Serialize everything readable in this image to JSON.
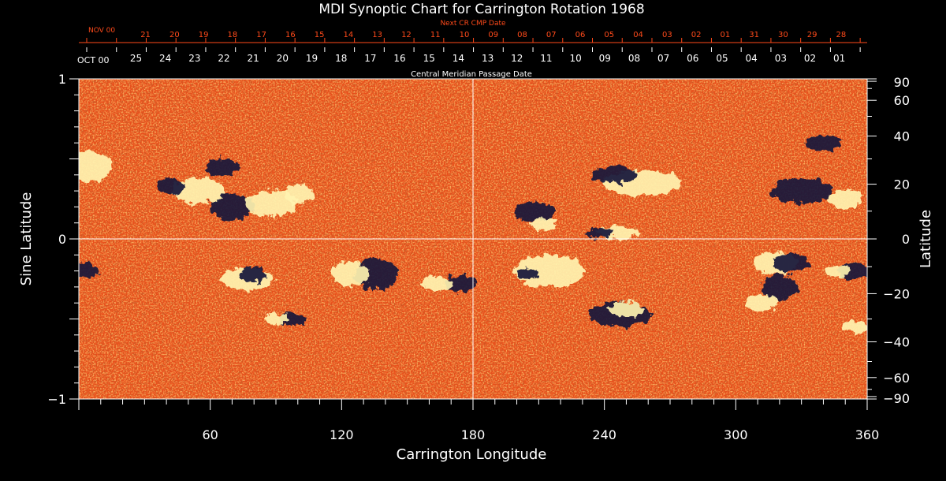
{
  "chart_data": {
    "type": "heatmap",
    "title": "MDI Synoptic Chart for Carrington Rotation 1968",
    "xlabel": "Carrington Longitude",
    "ylabel_left": "Sine Latitude",
    "ylabel_right": "Latitude",
    "xlim": [
      0,
      360
    ],
    "ylim": [
      -1,
      1
    ],
    "x_ticks": [
      "60",
      "120",
      "180",
      "240",
      "300",
      "360"
    ],
    "y_ticks_left": [
      "1",
      "0",
      "−1"
    ],
    "y_ticks_right": [
      "90",
      "60",
      "40",
      "20",
      "0",
      "−20",
      "−40",
      "−60",
      "−90"
    ],
    "top_axis": {
      "label": "Central Meridian Passage Date",
      "month_label": "OCT 00",
      "dates": [
        "25",
        "24",
        "23",
        "22",
        "21",
        "20",
        "19",
        "18",
        "17",
        "16",
        "15",
        "14",
        "13",
        "12",
        "11",
        "10",
        "09",
        "08",
        "07",
        "06",
        "05",
        "04",
        "03",
        "02",
        "01"
      ]
    },
    "next_axis": {
      "label": "Next CR CMP Date",
      "month_label": "NOV 00",
      "dates": [
        "21",
        "20",
        "19",
        "18",
        "17",
        "16",
        "15",
        "14",
        "13",
        "12",
        "11",
        "10",
        "09",
        "08",
        "07",
        "06",
        "05",
        "04",
        "03",
        "02",
        "01",
        "31",
        "30",
        "29",
        "28"
      ]
    },
    "background_color": "#e8501c",
    "positive_color": "#fff3b0",
    "negative_color": "#14143a",
    "regions": [
      {
        "lon": 55,
        "sinlat": 0.3,
        "rlon": 12,
        "rs": 0.08,
        "polarity": "positive"
      },
      {
        "lon": 42,
        "sinlat": 0.33,
        "rlon": 6,
        "rs": 0.05,
        "polarity": "negative"
      },
      {
        "lon": 70,
        "sinlat": 0.2,
        "rlon": 10,
        "rs": 0.08,
        "polarity": "negative"
      },
      {
        "lon": 88,
        "sinlat": 0.22,
        "rlon": 12,
        "rs": 0.08,
        "polarity": "positive"
      },
      {
        "lon": 101,
        "sinlat": 0.28,
        "rlon": 7,
        "rs": 0.06,
        "polarity": "positive"
      },
      {
        "lon": 65,
        "sinlat": 0.45,
        "rlon": 8,
        "rs": 0.05,
        "polarity": "negative"
      },
      {
        "lon": 136,
        "sinlat": -0.22,
        "rlon": 10,
        "rs": 0.1,
        "polarity": "negative"
      },
      {
        "lon": 124,
        "sinlat": -0.22,
        "rlon": 9,
        "rs": 0.08,
        "polarity": "positive"
      },
      {
        "lon": 174,
        "sinlat": -0.28,
        "rlon": 7,
        "rs": 0.05,
        "polarity": "negative"
      },
      {
        "lon": 164,
        "sinlat": -0.28,
        "rlon": 7,
        "rs": 0.05,
        "polarity": "positive"
      },
      {
        "lon": 77,
        "sinlat": -0.25,
        "rlon": 12,
        "rs": 0.07,
        "polarity": "positive"
      },
      {
        "lon": 80,
        "sinlat": -0.22,
        "rlon": 6,
        "rs": 0.05,
        "polarity": "negative"
      },
      {
        "lon": 97,
        "sinlat": -0.5,
        "rlon": 6,
        "rs": 0.04,
        "polarity": "negative"
      },
      {
        "lon": 90,
        "sinlat": -0.5,
        "rlon": 6,
        "rs": 0.03,
        "polarity": "positive"
      },
      {
        "lon": 246,
        "sinlat": 0.04,
        "rlon": 10,
        "rs": 0.04,
        "polarity": "positive"
      },
      {
        "lon": 238,
        "sinlat": 0.04,
        "rlon": 6,
        "rs": 0.03,
        "polarity": "negative"
      },
      {
        "lon": 257,
        "sinlat": 0.35,
        "rlon": 18,
        "rs": 0.08,
        "polarity": "positive"
      },
      {
        "lon": 245,
        "sinlat": 0.4,
        "rlon": 10,
        "rs": 0.05,
        "polarity": "negative"
      },
      {
        "lon": 208,
        "sinlat": 0.17,
        "rlon": 10,
        "rs": 0.06,
        "polarity": "negative"
      },
      {
        "lon": 212,
        "sinlat": 0.09,
        "rlon": 6,
        "rs": 0.04,
        "polarity": "positive"
      },
      {
        "lon": 247,
        "sinlat": -0.47,
        "rlon": 14,
        "rs": 0.08,
        "polarity": "negative"
      },
      {
        "lon": 250,
        "sinlat": -0.44,
        "rlon": 8,
        "rs": 0.05,
        "polarity": "positive"
      },
      {
        "lon": 215,
        "sinlat": -0.2,
        "rlon": 16,
        "rs": 0.1,
        "polarity": "positive"
      },
      {
        "lon": 205,
        "sinlat": -0.22,
        "rlon": 5,
        "rs": 0.03,
        "polarity": "negative"
      },
      {
        "lon": 320,
        "sinlat": -0.3,
        "rlon": 8,
        "rs": 0.08,
        "polarity": "negative"
      },
      {
        "lon": 312,
        "sinlat": -0.4,
        "rlon": 8,
        "rs": 0.05,
        "polarity": "positive"
      },
      {
        "lon": 318,
        "sinlat": -0.15,
        "rlon": 10,
        "rs": 0.07,
        "polarity": "positive"
      },
      {
        "lon": 325,
        "sinlat": -0.15,
        "rlon": 8,
        "rs": 0.06,
        "polarity": "negative"
      },
      {
        "lon": 354,
        "sinlat": -0.2,
        "rlon": 8,
        "rs": 0.05,
        "polarity": "negative"
      },
      {
        "lon": 346,
        "sinlat": -0.2,
        "rlon": 6,
        "rs": 0.04,
        "polarity": "positive"
      },
      {
        "lon": 340,
        "sinlat": 0.6,
        "rlon": 8,
        "rs": 0.05,
        "polarity": "negative"
      },
      {
        "lon": 330,
        "sinlat": 0.3,
        "rlon": 14,
        "rs": 0.08,
        "polarity": "negative"
      },
      {
        "lon": 350,
        "sinlat": 0.25,
        "rlon": 8,
        "rs": 0.06,
        "polarity": "positive"
      },
      {
        "lon": 355,
        "sinlat": -0.55,
        "rlon": 6,
        "rs": 0.04,
        "polarity": "positive"
      },
      {
        "lon": 5,
        "sinlat": 0.45,
        "rlon": 10,
        "rs": 0.1,
        "polarity": "positive"
      },
      {
        "lon": 3,
        "sinlat": -0.2,
        "rlon": 6,
        "rs": 0.05,
        "polarity": "negative"
      }
    ]
  }
}
